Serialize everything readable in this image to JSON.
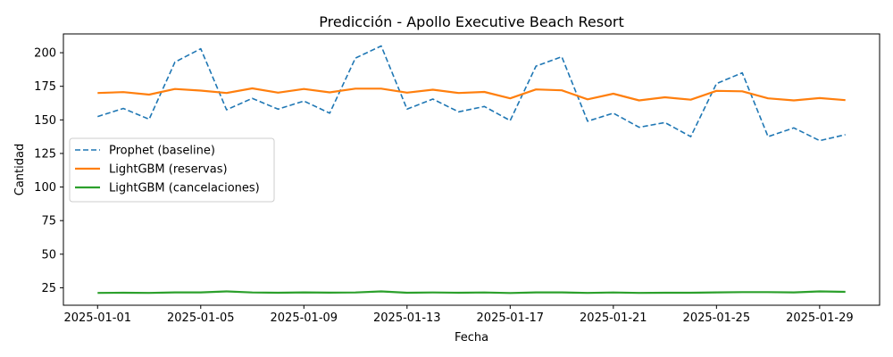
{
  "chart_data": {
    "type": "line",
    "title": "Predicción - Apollo Executive Beach Resort",
    "xlabel": "Fecha",
    "ylabel": "Cantidad",
    "x": [
      "2025-01-01",
      "2025-01-02",
      "2025-01-03",
      "2025-01-04",
      "2025-01-05",
      "2025-01-06",
      "2025-01-07",
      "2025-01-08",
      "2025-01-09",
      "2025-01-10",
      "2025-01-11",
      "2025-01-12",
      "2025-01-13",
      "2025-01-14",
      "2025-01-15",
      "2025-01-16",
      "2025-01-17",
      "2025-01-18",
      "2025-01-19",
      "2025-01-20",
      "2025-01-21",
      "2025-01-22",
      "2025-01-23",
      "2025-01-24",
      "2025-01-25",
      "2025-01-26",
      "2025-01-27",
      "2025-01-28",
      "2025-01-29",
      "2025-01-30"
    ],
    "x_ticks": [
      "2025-01-01",
      "2025-01-05",
      "2025-01-09",
      "2025-01-13",
      "2025-01-17",
      "2025-01-21",
      "2025-01-25",
      "2025-01-29"
    ],
    "y_ticks": [
      25,
      50,
      75,
      100,
      125,
      150,
      175,
      200
    ],
    "ylim": [
      12,
      214
    ],
    "grid": false,
    "legend_position": "center-left",
    "series": [
      {
        "name": "Prophet (baseline)",
        "color": "#1f77b4",
        "style": "dashed",
        "values": [
          152.5,
          158.5,
          150.5,
          193,
          203,
          157.5,
          166,
          158,
          164,
          155,
          196,
          205,
          158,
          165.5,
          156,
          160,
          149.5,
          190,
          197,
          149,
          155,
          144.5,
          148,
          137.5,
          177,
          185,
          137.5,
          144,
          134.5,
          139
        ]
      },
      {
        "name": "LightGBM (reservas)",
        "color": "#ff7f0e",
        "style": "solid",
        "values": [
          170,
          170.7,
          168.8,
          173,
          171.8,
          170,
          173.5,
          170.3,
          173,
          170.5,
          173.3,
          173.3,
          170.3,
          172.5,
          170,
          170.8,
          166,
          172.7,
          172,
          165.3,
          169.5,
          164.5,
          166.8,
          165,
          171.6,
          171.3,
          166,
          164.5,
          166.2,
          164.7
        ]
      },
      {
        "name": "LightGBM (cancelaciones)",
        "color": "#2ca02c",
        "style": "solid",
        "values": [
          21.2,
          21.3,
          21.2,
          21.6,
          21.6,
          22.3,
          21.5,
          21.3,
          21.6,
          21.4,
          21.5,
          22.3,
          21.3,
          21.5,
          21.3,
          21.5,
          21.1,
          21.6,
          21.6,
          21.2,
          21.5,
          21.2,
          21.3,
          21.3,
          21.6,
          21.8,
          21.8,
          21.6,
          22.3,
          22
        ]
      }
    ]
  }
}
